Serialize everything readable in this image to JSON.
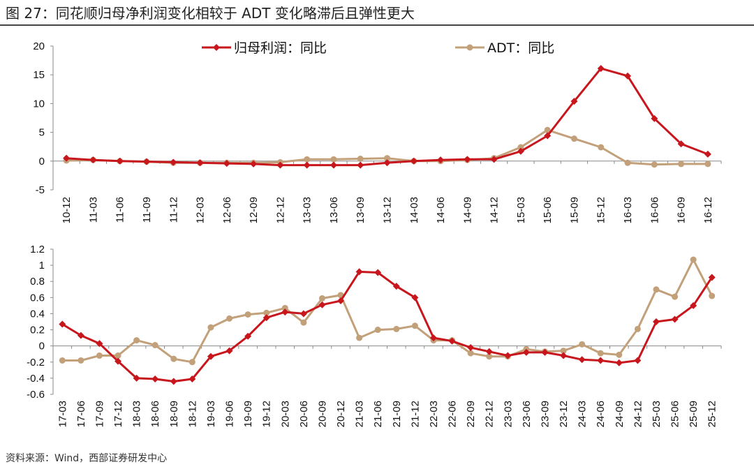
{
  "title": "图 27：同花顺归母净利润变化相较于 ADT 变化略滞后且弹性更大",
  "source": "资料来源：Wind，西部证券研发中心",
  "colors": {
    "profit": "#c8161d",
    "adt": "#c2a07a",
    "axis": "#888888"
  },
  "chart_data": [
    {
      "type": "line",
      "title": "",
      "xlabel": "",
      "ylabel": "",
      "ylim": [
        -5,
        20
      ],
      "yticks": [
        20,
        15,
        10,
        5,
        0,
        -5
      ],
      "grid": false,
      "legend": "top",
      "categories": [
        "10-12",
        "11-03",
        "11-06",
        "11-09",
        "11-12",
        "12-03",
        "12-06",
        "12-09",
        "12-12",
        "13-03",
        "13-06",
        "13-09",
        "13-12",
        "14-03",
        "14-06",
        "14-09",
        "14-12",
        "15-03",
        "15-06",
        "15-09",
        "15-12",
        "16-03",
        "16-06",
        "16-09",
        "16-12"
      ],
      "series": [
        {
          "name": "归母利润：同比",
          "marker": "diamond",
          "values": [
            0.5,
            0.2,
            0.0,
            -0.1,
            -0.2,
            -0.3,
            -0.4,
            -0.5,
            -0.7,
            -0.7,
            -0.7,
            -0.7,
            -0.3,
            0.0,
            0.2,
            0.3,
            0.3,
            1.7,
            4.4,
            10.4,
            16.1,
            14.8,
            7.4,
            3.0,
            1.2
          ]
        },
        {
          "name": "ADT：同比",
          "marker": "circle",
          "values": [
            0.1,
            0.2,
            0.0,
            -0.1,
            -0.3,
            -0.3,
            -0.3,
            -0.3,
            -0.2,
            0.3,
            0.3,
            0.4,
            0.5,
            0.0,
            0.0,
            0.2,
            0.5,
            2.4,
            5.4,
            3.9,
            2.4,
            -0.3,
            -0.6,
            -0.5,
            -0.5
          ]
        }
      ]
    },
    {
      "type": "line",
      "title": "",
      "xlabel": "",
      "ylabel": "",
      "ylim": [
        -0.6,
        1.2
      ],
      "yticks": [
        "1.2",
        "1",
        "0.8",
        "0.6",
        "0.4",
        "0.2",
        "0",
        "-0.2",
        "-0.4",
        "-0.6"
      ],
      "grid": false,
      "legend": "none",
      "categories": [
        "17-03",
        "17-06",
        "17-09",
        "17-12",
        "18-03",
        "18-06",
        "18-09",
        "18-12",
        "19-03",
        "19-06",
        "19-09",
        "19-12",
        "20-03",
        "20-06",
        "20-09",
        "20-12",
        "21-03",
        "21-06",
        "21-09",
        "21-12",
        "22-03",
        "22-06",
        "22-09",
        "22-12",
        "23-03",
        "23-06",
        "23-09",
        "23-12",
        "24-03",
        "24-06",
        "24-09",
        "24-12",
        "25-03",
        "25-06",
        "25-09",
        "25-12"
      ],
      "series": [
        {
          "name": "归母利润：同比",
          "marker": "diamond",
          "values": [
            0.27,
            0.13,
            0.03,
            -0.19,
            -0.4,
            -0.41,
            -0.44,
            -0.41,
            -0.13,
            -0.06,
            0.12,
            0.35,
            0.42,
            0.4,
            0.51,
            0.56,
            0.92,
            0.91,
            0.74,
            0.6,
            0.1,
            0.06,
            -0.02,
            -0.07,
            -0.12,
            -0.08,
            -0.08,
            -0.12,
            -0.17,
            -0.18,
            -0.21,
            -0.18,
            0.3,
            0.33,
            0.5,
            0.85
          ]
        },
        {
          "name": "ADT：同比",
          "marker": "circle",
          "values": [
            -0.18,
            -0.18,
            -0.12,
            -0.12,
            0.07,
            0.01,
            -0.16,
            -0.2,
            0.23,
            0.34,
            0.39,
            0.41,
            0.47,
            0.29,
            0.59,
            0.63,
            0.1,
            0.2,
            0.21,
            0.25,
            0.07,
            0.07,
            -0.09,
            -0.13,
            -0.13,
            -0.04,
            -0.07,
            -0.06,
            0.02,
            -0.09,
            -0.11,
            0.21,
            0.7,
            0.61,
            1.07,
            0.62
          ]
        }
      ]
    }
  ]
}
